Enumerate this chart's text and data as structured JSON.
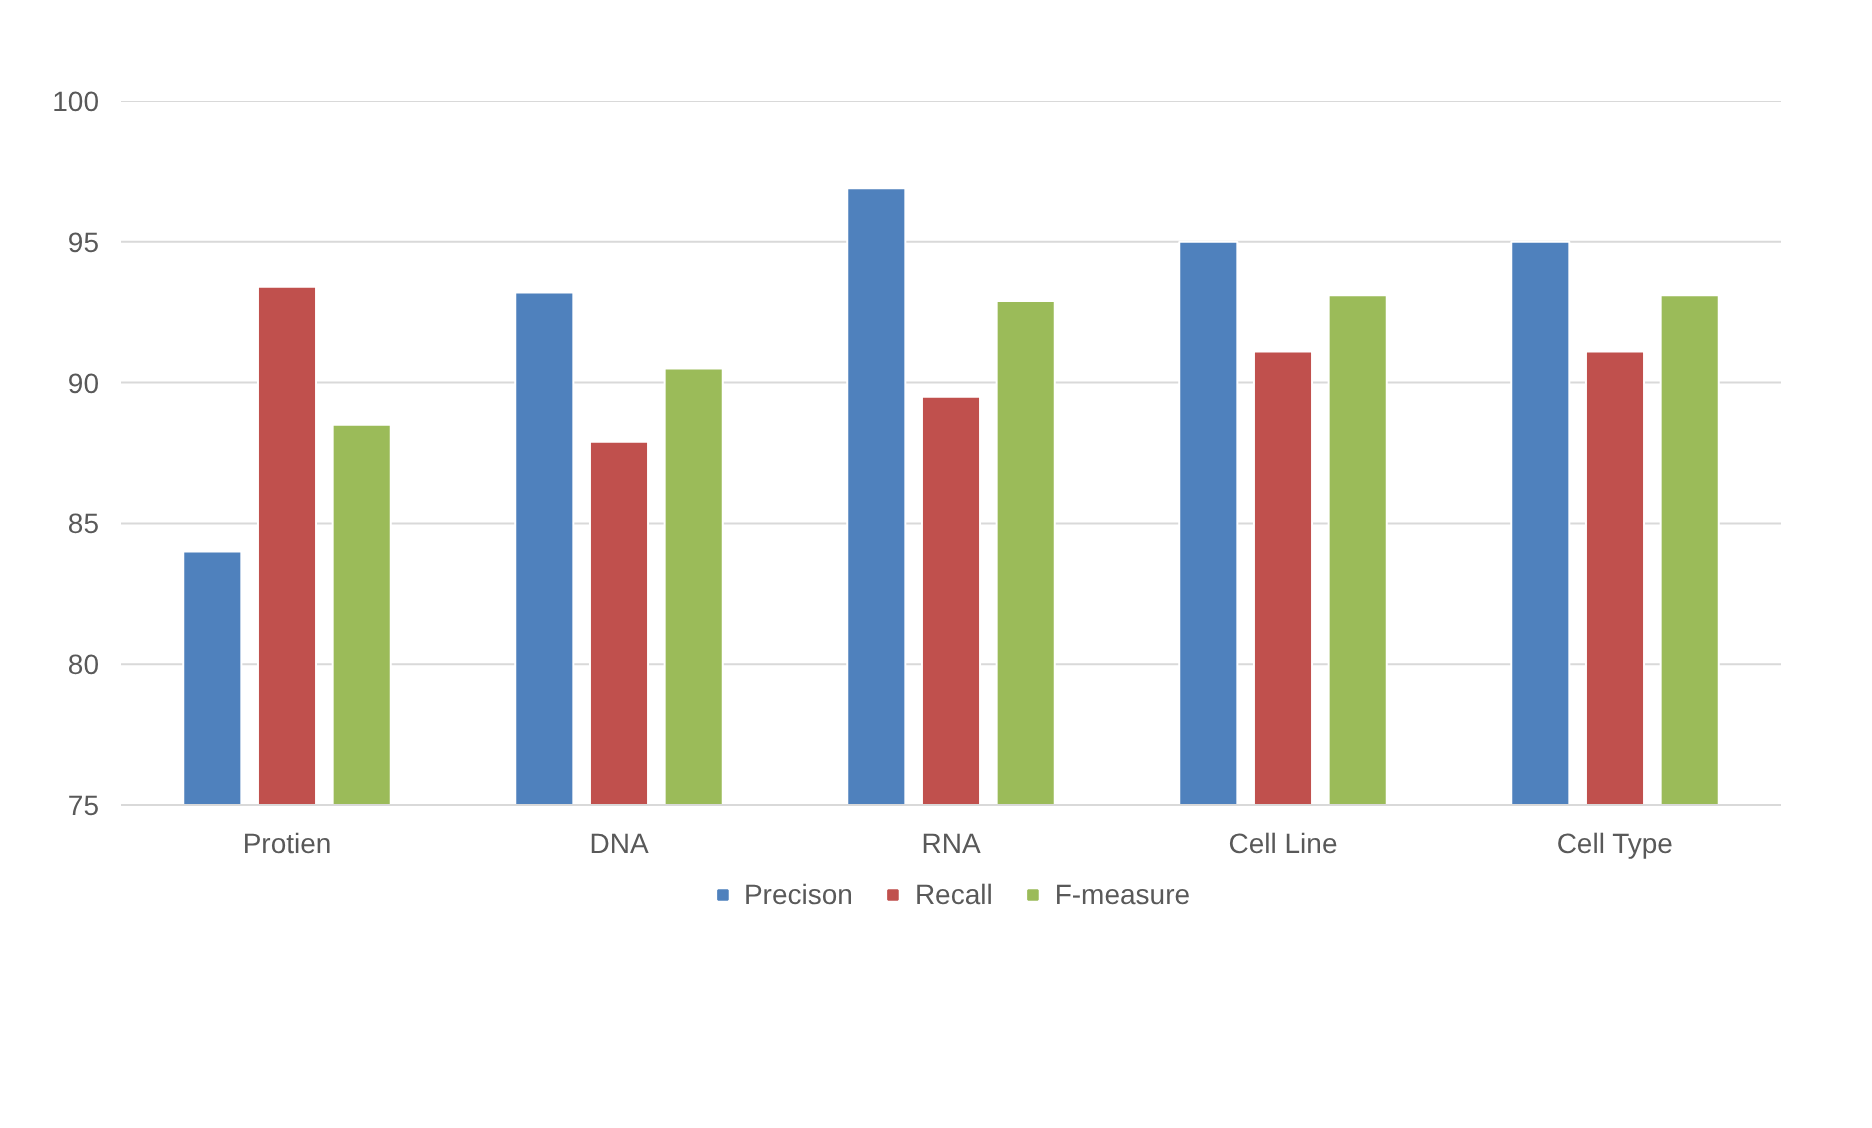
{
  "chart_data": {
    "type": "bar",
    "categories": [
      "Protien",
      "DNA",
      "RNA",
      "Cell Line",
      "Cell Type"
    ],
    "series": [
      {
        "name": "Precison",
        "color": "#4f81bd",
        "values": [
          84.0,
          93.2,
          96.9,
          95.0,
          95.0
        ]
      },
      {
        "name": "Recall",
        "color": "#c0504d",
        "values": [
          93.4,
          87.9,
          89.5,
          91.1,
          91.1
        ]
      },
      {
        "name": "F-measure",
        "color": "#9bbb59",
        "values": [
          88.5,
          90.5,
          92.9,
          93.1,
          93.1
        ]
      }
    ],
    "ylim": [
      75,
      100
    ],
    "yticks": [
      75,
      80,
      85,
      90,
      95,
      100
    ],
    "grid": "y",
    "legend": "bottom"
  }
}
